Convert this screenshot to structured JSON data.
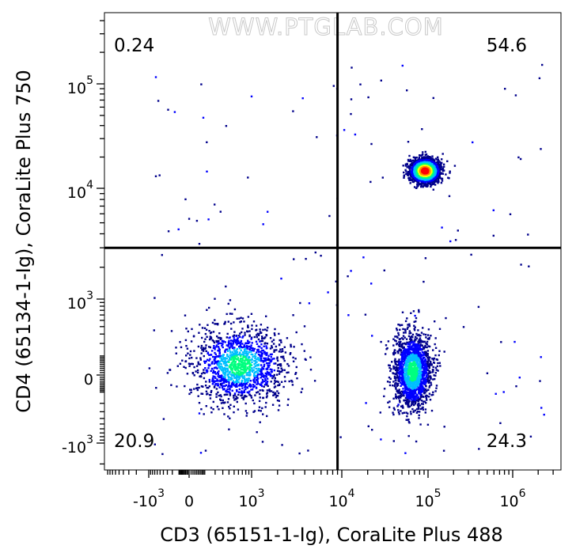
{
  "chart_data": {
    "type": "scatter",
    "subtype": "flow-cytometry-density-dot-plot",
    "watermark": "WWW.PTGLAB.COM",
    "xlabel": "CD3 (65151-1-Ig), CoraLite Plus 488",
    "ylabel": "CD4 (65134-1-Ig), CoraLite Plus 750",
    "x_scale": "biexponential",
    "y_scale": "biexponential",
    "x_ticks": [
      {
        "value": -1000,
        "base": "-10",
        "exp": "3"
      },
      {
        "value": 0,
        "base": "0",
        "exp": ""
      },
      {
        "value": 1000,
        "base": "10",
        "exp": "3"
      },
      {
        "value": 10000,
        "base": "10",
        "exp": "4"
      },
      {
        "value": 100000,
        "base": "10",
        "exp": "5"
      },
      {
        "value": 1000000,
        "base": "10",
        "exp": "6"
      }
    ],
    "y_ticks": [
      {
        "value": -1000,
        "base": "-10",
        "exp": "3"
      },
      {
        "value": 0,
        "base": "0",
        "exp": ""
      },
      {
        "value": 1000,
        "base": "10",
        "exp": "3"
      },
      {
        "value": 10000,
        "base": "10",
        "exp": "4"
      },
      {
        "value": 100000,
        "base": "10",
        "exp": "5"
      }
    ],
    "gate": {
      "x": 9000,
      "y": 3000
    },
    "quadrants": [
      {
        "position": "top-left",
        "percent": "0.24"
      },
      {
        "position": "top-right",
        "percent": "54.6"
      },
      {
        "position": "bottom-left",
        "percent": "20.9"
      },
      {
        "position": "bottom-right",
        "percent": "24.3"
      }
    ],
    "populations": [
      {
        "name_hidden": true,
        "center": [
          600,
          50
        ],
        "spread": [
          0.55,
          0.45
        ],
        "count": 1400
      },
      {
        "name_hidden": true,
        "center": [
          65000,
          20
        ],
        "spread": [
          0.22,
          0.45
        ],
        "count": 1600
      },
      {
        "name_hidden": true,
        "center": [
          90000,
          15000
        ],
        "spread": [
          0.16,
          0.13
        ],
        "count": 2600
      }
    ],
    "density_colors": [
      "#00008b",
      "#0000ff",
      "#00bfff",
      "#00ff7f",
      "#ffff00",
      "#ff8c00",
      "#ff0000"
    ]
  }
}
